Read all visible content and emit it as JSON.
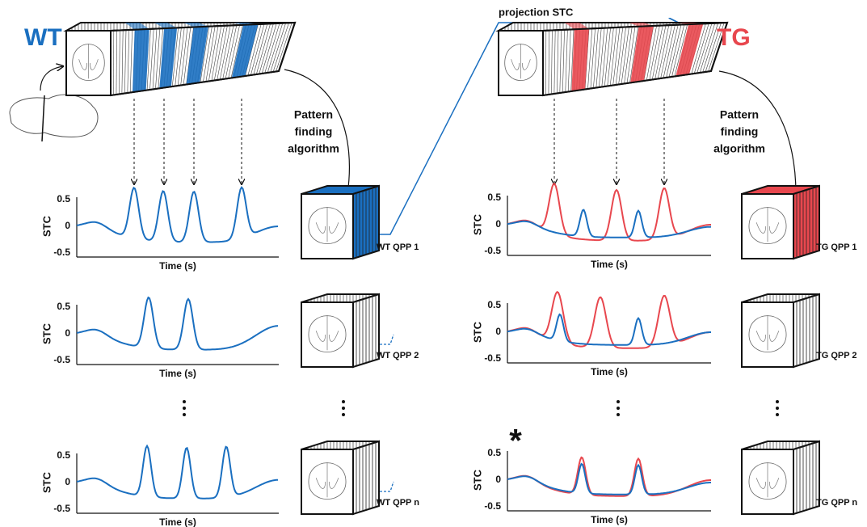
{
  "wt_label": "WT",
  "tg_label": "TG",
  "projection_label": "projection STC",
  "algorithm_labels": [
    [
      "Pattern",
      "finding",
      "algorithm"
    ],
    [
      "Pattern",
      "finding",
      "algorithm"
    ]
  ],
  "plots": [
    {
      "y_label": "STC",
      "x_label": "Time (s)",
      "yticks": [
        0.5,
        0,
        -0.5
      ]
    },
    {
      "y_label": "STC",
      "x_label": "Time (s)",
      "yticks": [
        0.5,
        0,
        -0.5
      ]
    },
    {
      "y_label": "STC",
      "x_label": "Time (s)",
      "yticks": [
        0.5,
        0,
        -0.5
      ]
    },
    {
      "y_label": "STC",
      "x_label": "Time (s)",
      "yticks": [
        0.5,
        0,
        -0.5
      ]
    },
    {
      "y_label": "STC",
      "x_label": "Time (s)",
      "yticks": [
        0.5,
        0,
        -0.5
      ]
    },
    {
      "y_label": "STC",
      "x_label": "Time (s)",
      "yticks": [
        0.5,
        0,
        -0.5
      ]
    }
  ],
  "qpp_labels": [
    "WT QPP 1",
    "WT QPP 2",
    "WT QPP n",
    "TG QPP 1",
    "TG QPP 2",
    "TG QPP n"
  ],
  "annotation": "*"
}
